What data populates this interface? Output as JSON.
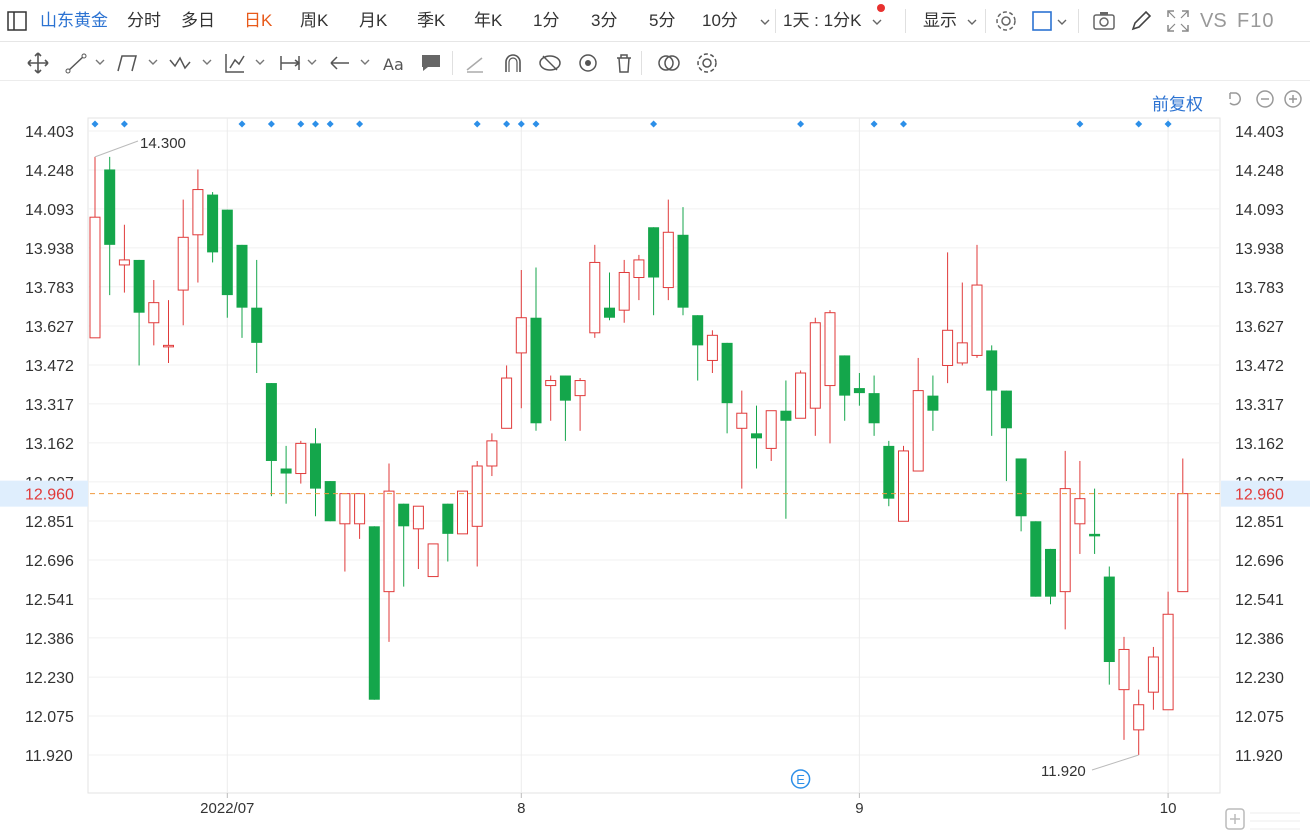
{
  "toolbar": {
    "layout_icon": "panel-icon",
    "stock_name": "山东黄金",
    "tabs": [
      "分时",
      "多日",
      "日K",
      "周K",
      "月K",
      "季K",
      "年K",
      "1分",
      "3分",
      "5分",
      "10分"
    ],
    "active_tab": "日K",
    "interval_select": "1天 : 1分K",
    "display_select": "显示",
    "vs_label": "VS",
    "f10_label": "F10"
  },
  "drawing_tools": [
    "move-icon",
    "line-icon",
    "channel-icon",
    "wave-icon",
    "fib-icon",
    "range-icon",
    "arrow-icon",
    "text-icon",
    "note-icon",
    "pen-icon",
    "magnet-icon",
    "visibility-toggle-icon",
    "eye-icon",
    "trash-icon",
    "compare-icon",
    "tool-settings-icon"
  ],
  "chart_controls": {
    "adjust_label": "前复权",
    "reset_icon": "undo-icon",
    "zoom_out_icon": "zoom-out-icon",
    "zoom_in_icon": "zoom-in-icon"
  },
  "chart_data": {
    "type": "candlestick",
    "y_ticks": [
      "14.403",
      "14.248",
      "14.093",
      "13.938",
      "13.783",
      "13.627",
      "13.472",
      "13.317",
      "13.162",
      "13.007",
      "12.851",
      "12.696",
      "12.541",
      "12.386",
      "12.230",
      "12.075",
      "11.920"
    ],
    "ylim": [
      11.92,
      14.403
    ],
    "x_labels": [
      {
        "label": "2022/07",
        "index": 9
      },
      {
        "label": "8",
        "index": 29
      },
      {
        "label": "9",
        "index": 52
      },
      {
        "label": "10",
        "index": 73
      }
    ],
    "last_price": "12.960",
    "max_label": "14.300",
    "min_label": "11.920",
    "max_index": 0,
    "min_index": 71,
    "event_marker": "E",
    "event_index": 48,
    "dot_indices": [
      0,
      2,
      10,
      12,
      14,
      15,
      16,
      18,
      26,
      28,
      29,
      30,
      38,
      48,
      53,
      55,
      67,
      71,
      73
    ],
    "up_color": "#e03a3a",
    "down_color": "#14a64b",
    "candles": [
      {
        "o": 13.58,
        "h": 14.3,
        "l": 13.58,
        "c": 14.06
      },
      {
        "o": 14.25,
        "h": 14.3,
        "l": 13.75,
        "c": 13.95
      },
      {
        "o": 13.87,
        "h": 14.03,
        "l": 13.76,
        "c": 13.89
      },
      {
        "o": 13.89,
        "h": 13.89,
        "l": 13.47,
        "c": 13.68
      },
      {
        "o": 13.64,
        "h": 13.81,
        "l": 13.55,
        "c": 13.72
      },
      {
        "o": 13.55,
        "h": 13.73,
        "l": 13.48,
        "c": 13.55
      },
      {
        "o": 13.77,
        "h": 14.13,
        "l": 13.63,
        "c": 13.98
      },
      {
        "o": 13.99,
        "h": 14.25,
        "l": 13.8,
        "c": 14.17
      },
      {
        "o": 14.15,
        "h": 14.16,
        "l": 13.88,
        "c": 13.92
      },
      {
        "o": 14.09,
        "h": 14.09,
        "l": 13.66,
        "c": 13.75
      },
      {
        "o": 13.95,
        "h": 13.95,
        "l": 13.58,
        "c": 13.7
      },
      {
        "o": 13.7,
        "h": 13.89,
        "l": 13.44,
        "c": 13.56
      },
      {
        "o": 13.4,
        "h": 13.4,
        "l": 12.95,
        "c": 13.09
      },
      {
        "o": 13.06,
        "h": 13.15,
        "l": 12.92,
        "c": 13.04
      },
      {
        "o": 13.04,
        "h": 13.17,
        "l": 13.0,
        "c": 13.16
      },
      {
        "o": 13.16,
        "h": 13.22,
        "l": 12.87,
        "c": 12.98
      },
      {
        "o": 13.01,
        "h": 13.01,
        "l": 12.85,
        "c": 12.85
      },
      {
        "o": 12.84,
        "h": 12.96,
        "l": 12.65,
        "c": 12.96
      },
      {
        "o": 12.84,
        "h": 12.96,
        "l": 12.78,
        "c": 12.96
      },
      {
        "o": 12.83,
        "h": 12.83,
        "l": 12.14,
        "c": 12.14
      },
      {
        "o": 12.57,
        "h": 13.08,
        "l": 12.37,
        "c": 12.97
      },
      {
        "o": 12.92,
        "h": 12.92,
        "l": 12.59,
        "c": 12.83
      },
      {
        "o": 12.82,
        "h": 12.91,
        "l": 12.66,
        "c": 12.91
      },
      {
        "o": 12.63,
        "h": 12.76,
        "l": 12.63,
        "c": 12.76
      },
      {
        "o": 12.92,
        "h": 12.92,
        "l": 12.69,
        "c": 12.8
      },
      {
        "o": 12.8,
        "h": 12.97,
        "l": 12.8,
        "c": 12.97
      },
      {
        "o": 12.83,
        "h": 13.09,
        "l": 12.67,
        "c": 13.07
      },
      {
        "o": 13.07,
        "h": 13.2,
        "l": 13.03,
        "c": 13.17
      },
      {
        "o": 13.22,
        "h": 13.47,
        "l": 13.22,
        "c": 13.42
      },
      {
        "o": 13.52,
        "h": 13.85,
        "l": 13.3,
        "c": 13.66
      },
      {
        "o": 13.66,
        "h": 13.86,
        "l": 13.21,
        "c": 13.24
      },
      {
        "o": 13.39,
        "h": 13.43,
        "l": 13.25,
        "c": 13.41
      },
      {
        "o": 13.43,
        "h": 13.43,
        "l": 13.17,
        "c": 13.33
      },
      {
        "o": 13.35,
        "h": 13.42,
        "l": 13.21,
        "c": 13.41
      },
      {
        "o": 13.6,
        "h": 13.95,
        "l": 13.58,
        "c": 13.88
      },
      {
        "o": 13.7,
        "h": 13.84,
        "l": 13.65,
        "c": 13.66
      },
      {
        "o": 13.69,
        "h": 13.89,
        "l": 13.64,
        "c": 13.84
      },
      {
        "o": 13.82,
        "h": 13.91,
        "l": 13.73,
        "c": 13.89
      },
      {
        "o": 14.02,
        "h": 14.02,
        "l": 13.67,
        "c": 13.82
      },
      {
        "o": 13.78,
        "h": 14.13,
        "l": 13.73,
        "c": 14.0
      },
      {
        "o": 13.99,
        "h": 14.1,
        "l": 13.67,
        "c": 13.7
      },
      {
        "o": 13.67,
        "h": 13.67,
        "l": 13.41,
        "c": 13.55
      },
      {
        "o": 13.49,
        "h": 13.61,
        "l": 13.44,
        "c": 13.59
      },
      {
        "o": 13.56,
        "h": 13.56,
        "l": 13.2,
        "c": 13.32
      },
      {
        "o": 13.22,
        "h": 13.37,
        "l": 12.98,
        "c": 13.28
      },
      {
        "o": 13.2,
        "h": 13.31,
        "l": 13.06,
        "c": 13.18
      },
      {
        "o": 13.14,
        "h": 13.29,
        "l": 13.09,
        "c": 13.29
      },
      {
        "o": 13.29,
        "h": 13.41,
        "l": 12.86,
        "c": 13.25
      },
      {
        "o": 13.26,
        "h": 13.45,
        "l": 13.26,
        "c": 13.44
      },
      {
        "o": 13.3,
        "h": 13.66,
        "l": 13.19,
        "c": 13.64
      },
      {
        "o": 13.39,
        "h": 13.69,
        "l": 13.16,
        "c": 13.68
      },
      {
        "o": 13.51,
        "h": 13.51,
        "l": 13.25,
        "c": 13.35
      },
      {
        "o": 13.38,
        "h": 13.44,
        "l": 13.31,
        "c": 13.36
      },
      {
        "o": 13.36,
        "h": 13.43,
        "l": 13.19,
        "c": 13.24
      },
      {
        "o": 13.15,
        "h": 13.17,
        "l": 12.91,
        "c": 12.94
      },
      {
        "o": 12.85,
        "h": 13.15,
        "l": 12.85,
        "c": 13.13
      },
      {
        "o": 13.05,
        "h": 13.5,
        "l": 13.05,
        "c": 13.37
      },
      {
        "o": 13.35,
        "h": 13.43,
        "l": 13.21,
        "c": 13.29
      },
      {
        "o": 13.47,
        "h": 13.92,
        "l": 13.4,
        "c": 13.61
      },
      {
        "o": 13.48,
        "h": 13.8,
        "l": 13.47,
        "c": 13.56
      },
      {
        "o": 13.51,
        "h": 13.95,
        "l": 13.5,
        "c": 13.79
      },
      {
        "o": 13.53,
        "h": 13.55,
        "l": 13.19,
        "c": 13.37
      },
      {
        "o": 13.37,
        "h": 13.37,
        "l": 13.01,
        "c": 13.22
      },
      {
        "o": 13.1,
        "h": 13.1,
        "l": 12.81,
        "c": 12.87
      },
      {
        "o": 12.85,
        "h": 12.85,
        "l": 12.55,
        "c": 12.55
      },
      {
        "o": 12.74,
        "h": 12.74,
        "l": 12.52,
        "c": 12.55
      },
      {
        "o": 12.57,
        "h": 13.13,
        "l": 12.42,
        "c": 12.98
      },
      {
        "o": 12.84,
        "h": 13.09,
        "l": 12.72,
        "c": 12.94
      },
      {
        "o": 12.8,
        "h": 12.98,
        "l": 12.72,
        "c": 12.79
      },
      {
        "o": 12.63,
        "h": 12.67,
        "l": 12.2,
        "c": 12.29
      },
      {
        "o": 12.18,
        "h": 12.39,
        "l": 11.98,
        "c": 12.34
      },
      {
        "o": 12.02,
        "h": 12.18,
        "l": 11.92,
        "c": 12.12
      },
      {
        "o": 12.17,
        "h": 12.35,
        "l": 12.1,
        "c": 12.31
      },
      {
        "o": 12.1,
        "h": 12.57,
        "l": 12.1,
        "c": 12.48
      },
      {
        "o": 12.57,
        "h": 13.1,
        "l": 12.57,
        "c": 12.96
      }
    ]
  }
}
